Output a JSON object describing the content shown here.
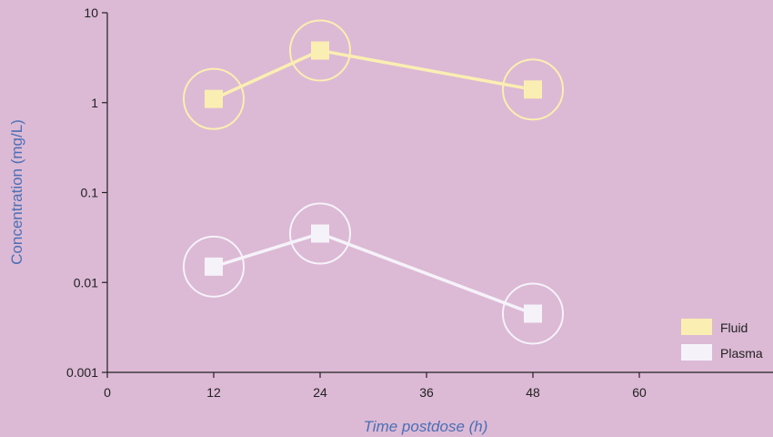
{
  "chart_data": {
    "type": "line",
    "xlabel": "Time postdose (h)",
    "ylabel": "Concentration (mg/L)",
    "xlim": [
      0,
      72
    ],
    "ylim": [
      0.001,
      10
    ],
    "yscale": "log",
    "x_ticks": [
      0,
      12,
      24,
      36,
      48,
      60
    ],
    "y_ticks": [
      0.001,
      0.01,
      0.1,
      1,
      10
    ],
    "y_tick_labels": [
      "0.001",
      "0.01",
      "0.1",
      "1",
      "10"
    ],
    "grid": false,
    "legend_position": "bottom-right",
    "series": [
      {
        "name": "Fluid",
        "color": "#fbeeb2",
        "x": [
          12,
          24,
          48
        ],
        "y": [
          1.1,
          3.8,
          1.4
        ]
      },
      {
        "name": "Plasma",
        "color": "#f5f2fa",
        "x": [
          12,
          24,
          48
        ],
        "y": [
          0.015,
          0.035,
          0.0045
        ]
      }
    ]
  }
}
